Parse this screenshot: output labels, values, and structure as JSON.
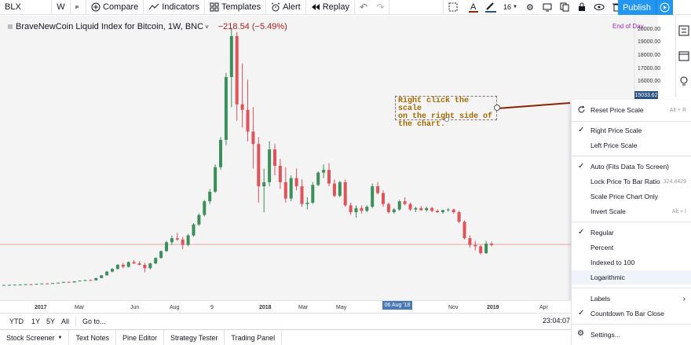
{
  "toolbar": {
    "symbol": "BLX",
    "interval": "W",
    "compare": "Compare",
    "indicators": "Indicators",
    "templates": "Templates",
    "alert": "Alert",
    "replay": "Replay",
    "font_size": "16",
    "publish": "Publish"
  },
  "legend": {
    "title": "BraveNewCoin Liquid Index for Bitcoin, 1W, BNC",
    "change": "−218.54 (−5.49%)",
    "end_of_day": "End of Day"
  },
  "price_scale": {
    "labels": [
      "20000.00",
      "19000.00",
      "18000.00",
      "17000.00",
      "16000.00"
    ],
    "current": "15033.62"
  },
  "annotation": {
    "lines": [
      "Right click the scale",
      "on the right side of",
      "the chart."
    ]
  },
  "context_menu": {
    "items": [
      {
        "label": "Reset Price Scale",
        "shortcut": "Alt + R",
        "icon": "reset-icon"
      },
      {
        "label": "Right Price Scale",
        "checked": true
      },
      {
        "label": "Left Price Scale"
      },
      {
        "label": "Auto (Fits Data To Screen)",
        "checked": true
      },
      {
        "label": "Lock Price To Bar Ratio",
        "shortcut": "324.4429"
      },
      {
        "label": "Scale Price Chart Only"
      },
      {
        "label": "Invert Scale",
        "shortcut": "Alt + I"
      },
      {
        "label": "Regular",
        "checked": true
      },
      {
        "label": "Percent"
      },
      {
        "label": "Indexed to 100"
      },
      {
        "label": "Logarithmic"
      },
      {
        "label": "Labels",
        "submenu": true
      },
      {
        "label": "Countdown To Bar Close",
        "checked": true
      },
      {
        "label": "Settings...",
        "icon": "gear-icon"
      }
    ]
  },
  "time_axis": {
    "labels": [
      "2017",
      "Mar",
      "Jun",
      "Aug",
      "9",
      "2018",
      "Mar",
      "May",
      "Nov",
      "2019",
      "Apr"
    ],
    "crosshair_date": "06 Aug '18"
  },
  "range_bar": {
    "buttons": [
      "YTD",
      "1Y",
      "5Y",
      "All"
    ],
    "goto": "Go to...",
    "clock": "23:04:07"
  },
  "bottom_tabs": [
    "Stock Screener",
    "Text Notes",
    "Pine Editor",
    "Strategy Tester",
    "Trading Panel"
  ],
  "chart_data": {
    "type": "candlestick",
    "colors": {
      "up": "#3c8f5a",
      "down": "#e0535b"
    },
    "candles": [
      [
        970,
        980,
        960,
        975
      ],
      [
        975,
        990,
        970,
        985
      ],
      [
        985,
        1000,
        980,
        995
      ],
      [
        995,
        1010,
        990,
        1005
      ],
      [
        1005,
        1030,
        1000,
        1025
      ],
      [
        1025,
        1040,
        1015,
        1020
      ],
      [
        1020,
        1060,
        1015,
        1055
      ],
      [
        1055,
        1090,
        1050,
        1080
      ],
      [
        1080,
        1100,
        1060,
        1070
      ],
      [
        1070,
        1120,
        1065,
        1115
      ],
      [
        1115,
        1150,
        1105,
        1140
      ],
      [
        1140,
        1200,
        1130,
        1190
      ],
      [
        1190,
        1220,
        1150,
        1160
      ],
      [
        1160,
        1250,
        1150,
        1240
      ],
      [
        1240,
        1300,
        1230,
        1290
      ],
      [
        1290,
        1350,
        1270,
        1330
      ],
      [
        1330,
        1380,
        1300,
        1310
      ],
      [
        1310,
        1500,
        1300,
        1480
      ],
      [
        1480,
        1700,
        1460,
        1680
      ],
      [
        1680,
        2000,
        1650,
        1950
      ],
      [
        1950,
        2200,
        1900,
        2150
      ],
      [
        2150,
        2500,
        2100,
        2450
      ],
      [
        2450,
        2600,
        2200,
        2300
      ],
      [
        2300,
        2700,
        2250,
        2650
      ],
      [
        2650,
        2800,
        2500,
        2550
      ],
      [
        2550,
        2700,
        2400,
        2450
      ],
      [
        2450,
        2600,
        1900,
        2200
      ],
      [
        2200,
        2600,
        2100,
        2550
      ],
      [
        2550,
        3000,
        2500,
        2950
      ],
      [
        2950,
        3500,
        2900,
        3450
      ],
      [
        3450,
        4200,
        3400,
        4100
      ],
      [
        4100,
        4600,
        3900,
        4400
      ],
      [
        4400,
        4800,
        4200,
        4300
      ],
      [
        4300,
        4500,
        3600,
        3900
      ],
      [
        3900,
        4700,
        3800,
        4600
      ],
      [
        4600,
        5500,
        4500,
        5400
      ],
      [
        5400,
        6200,
        5300,
        6100
      ],
      [
        6100,
        7200,
        6000,
        7100
      ],
      [
        7100,
        8000,
        6900,
        7800
      ],
      [
        7800,
        9800,
        7700,
        9600
      ],
      [
        9600,
        11800,
        9400,
        11600
      ],
      [
        11600,
        16500,
        11200,
        16200
      ],
      [
        16200,
        19800,
        14000,
        19200
      ],
      [
        19200,
        19500,
        13000,
        14200
      ],
      [
        14200,
        17200,
        12500,
        13800
      ],
      [
        13800,
        16000,
        11500,
        12200
      ],
      [
        12200,
        14000,
        9500,
        11300
      ],
      [
        11300,
        11800,
        7000,
        8200
      ],
      [
        8200,
        9500,
        6300,
        8500
      ],
      [
        8500,
        11500,
        8200,
        10900
      ],
      [
        10900,
        11300,
        9000,
        9700
      ],
      [
        9700,
        10200,
        8000,
        8500
      ],
      [
        8500,
        9600,
        7000,
        7300
      ],
      [
        7300,
        9000,
        7100,
        8800
      ],
      [
        8800,
        9500,
        7900,
        8200
      ],
      [
        8200,
        8700,
        6700,
        6900
      ],
      [
        6900,
        7400,
        6500,
        7000
      ],
      [
        7000,
        8500,
        6900,
        8300
      ],
      [
        8300,
        9300,
        8200,
        9200
      ],
      [
        9200,
        9800,
        8800,
        9400
      ],
      [
        9400,
        9900,
        8200,
        8400
      ],
      [
        8400,
        8700,
        7400,
        7500
      ],
      [
        7500,
        8600,
        7400,
        8500
      ],
      [
        8500,
        8700,
        6700,
        6800
      ],
      [
        6800,
        7000,
        6100,
        6300
      ],
      [
        6300,
        6800,
        5900,
        6600
      ],
      [
        6600,
        6800,
        6200,
        6400
      ],
      [
        6400,
        6800,
        6300,
        6700
      ],
      [
        6700,
        8400,
        6600,
        8200
      ],
      [
        8200,
        8500,
        7600,
        7700
      ],
      [
        7700,
        7900,
        6700,
        6900
      ],
      [
        6900,
        7000,
        6200,
        6300
      ],
      [
        6300,
        6600,
        6200,
        6500
      ],
      [
        6500,
        7200,
        6400,
        7100
      ],
      [
        7100,
        7400,
        6800,
        6900
      ],
      [
        6900,
        7000,
        6400,
        6500
      ],
      [
        6500,
        6700,
        6300,
        6600
      ],
      [
        6600,
        6750,
        6400,
        6450
      ],
      [
        6450,
        6700,
        6350,
        6600
      ],
      [
        6600,
        6700,
        6300,
        6400
      ],
      [
        6400,
        6500,
        6250,
        6300
      ],
      [
        6300,
        6500,
        6200,
        6450
      ],
      [
        6450,
        6600,
        6350,
        6500
      ],
      [
        6500,
        6550,
        6200,
        6300
      ],
      [
        6300,
        6400,
        5500,
        5600
      ],
      [
        5600,
        5700,
        4300,
        4400
      ],
      [
        4400,
        4600,
        3700,
        3900
      ],
      [
        3900,
        4200,
        3500,
        3800
      ],
      [
        3800,
        3900,
        3200,
        3300
      ],
      [
        3300,
        4200,
        3250,
        4000
      ],
      [
        4000,
        4150,
        3800,
        3900
      ]
    ]
  }
}
